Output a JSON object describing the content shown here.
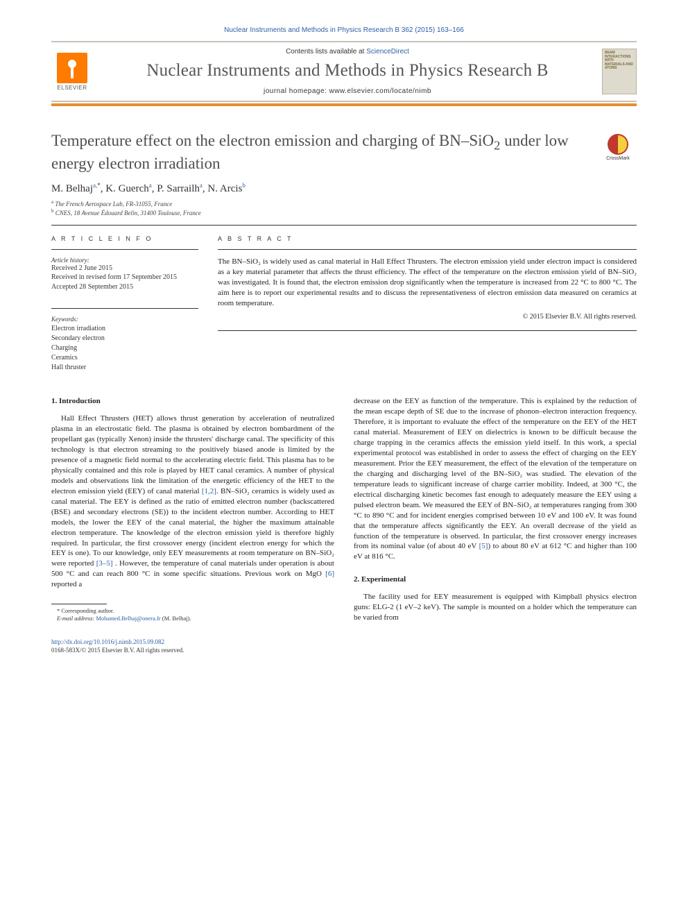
{
  "header": {
    "citation": "Nuclear Instruments and Methods in Physics Research B 362 (2015) 163–166",
    "contents_prefix": "Contents lists available at ",
    "contents_link": "ScienceDirect",
    "journal_name": "Nuclear Instruments and Methods in Physics Research B",
    "homepage_prefix": "journal homepage: ",
    "homepage_url": "www.elsevier.com/locate/nimb",
    "elsevier_label": "ELSEVIER",
    "cover_text": "BEAM INTERACTIONS WITH MATERIALS AND ATOMS",
    "crossmark_label": "CrossMark"
  },
  "article": {
    "title_pre": "Temperature effect on the electron emission and charging of BN–SiO",
    "title_sub": "2",
    "title_post": " under low energy electron irradiation",
    "authors_html": "M. Belhaj",
    "author_a_sup": "a,",
    "author_star": "*",
    "author_2": ", K. Guerch",
    "author_2_sup": "a",
    "author_3": ", P. Sarrailh",
    "author_3_sup": "a",
    "author_4": ", N. Arcis",
    "author_4_sup": "b",
    "affil_a_sup": "a",
    "affil_a": " The French Aerospace Lab, FR-31055, France",
    "affil_b_sup": "b",
    "affil_b": " CNES, 18 Avenue Édouard Belin, 31400 Toulouse, France"
  },
  "info": {
    "heading": "A R T I C L E   I N F O",
    "history_label": "Article history:",
    "received": "Received 2 June 2015",
    "revised": "Received in revised form 17 September 2015",
    "accepted": "Accepted 28 September 2015",
    "keywords_label": "Keywords:",
    "kw": [
      "Electron irradiation",
      "Secondary electron",
      "Charging",
      "Ceramics",
      "Hall thruster"
    ]
  },
  "abstract": {
    "heading": "A B S T R A C T",
    "text": "The BN–SiO₂ is widely used as canal material in Hall Effect Thrusters. The electron emission yield under electron impact is considered as a key material parameter that affects the thrust efficiency. The effect of the temperature on the electron emission yield of BN–SiO₂ was investigated. It is found that, the electron emission drop significantly when the temperature is increased from 22 °C to 800 °C. The aim here is to report our experimental results and to discuss the representativeness of electron emission data measured on ceramics at room temperature.",
    "copyright": "© 2015 Elsevier B.V. All rights reserved."
  },
  "body": {
    "sec1_heading": "1. Introduction",
    "sec1_text": "Hall Effect Thrusters (HET) allows thrust generation by acceleration of neutralized plasma in an electrostatic field. The plasma is obtained by electron bombardment of the propellant gas (typically Xenon) inside the thrusters' discharge canal. The specificity of this technology is that electron streaming to the positively biased anode is limited by the presence of a magnetic field normal to the accelerating electric field. This plasma has to be physically contained and this role is played by HET canal ceramics. A number of physical models and observations link the limitation of the energetic efficiency of the HET to the electron emission yield (EEY) of canal material [1,2]. BN–SiO₂ ceramics is widely used as canal material. The EEY is defined as the ratio of emitted electron number (backscattered (BSE) and secondary electrons (SE)) to the incident electron number. According to HET models, the lower the EEY of the canal material, the higher the maximum attainable electron temperature. The knowledge of the electron emission yield is therefore highly required. In particular, the first crossover energy (incident electron energy for which the EEY is one). To our knowledge, only EEY measurements at room temperature on BN–SiO₂ were reported [3–5] . However, the temperature of canal materials under operation is about 500 °C and can reach 800 °C in some specific situations. Previous work on MgO [6] reported a",
    "col2_text": "decrease on the EEY as function of the temperature. This is explained by the reduction of the mean escape depth of SE due to the increase of phonon–electron interaction frequency. Therefore, it is important to evaluate the effect of the temperature on the EEY of the HET canal material. Measurement of EEY on dielectrics is known to be difficult because the charge trapping in the ceramics affects the emission yield itself. In this work, a special experimental protocol was established in order to assess the effect of charging on the EEY measurement. Prior the EEY measurement, the effect of the elevation of the temperature on the charging and discharging level of the BN–SiO₂ was studied. The elevation of the temperature leads to significant increase of charge carrier mobility. Indeed, at 300 °C, the electrical discharging kinetic becomes fast enough to adequately measure the EEY using a pulsed electron beam. We measured the EEY of BN–SiO₂ at temperatures ranging from 300 °C to 890 °C and for incident energies comprised between 10 eV and 100 eV. It was found that the temperature affects significantly the EEY. An overall decrease of the yield as function of the temperature is observed. In particular, the first crossover energy increases from its nominal value (of about 40 eV [5]) to about 80 eV at 612 °C and higher than 100 eV at 816 °C.",
    "sec2_heading": "2. Experimental",
    "sec2_text": "The facility used for EEY measurement is equipped with Kimpball physics electron guns: ELG-2 (1 eV–2 keV). The sample is mounted on a holder which the temperature can be varied from"
  },
  "footnote": {
    "corr": "* Corresponding author.",
    "email_label": "E-mail address: ",
    "email": "Mohamed.Belhaj@onera.fr",
    "email_suffix": " (M. Belhaj)."
  },
  "bottom": {
    "doi": "http://dx.doi.org/10.1016/j.nimb.2015.09.082",
    "issn": "0168-583X/© 2015 Elsevier B.V. All rights reserved."
  },
  "colors": {
    "link": "#2b5ea6",
    "orange_rule": "#e98c2f"
  }
}
